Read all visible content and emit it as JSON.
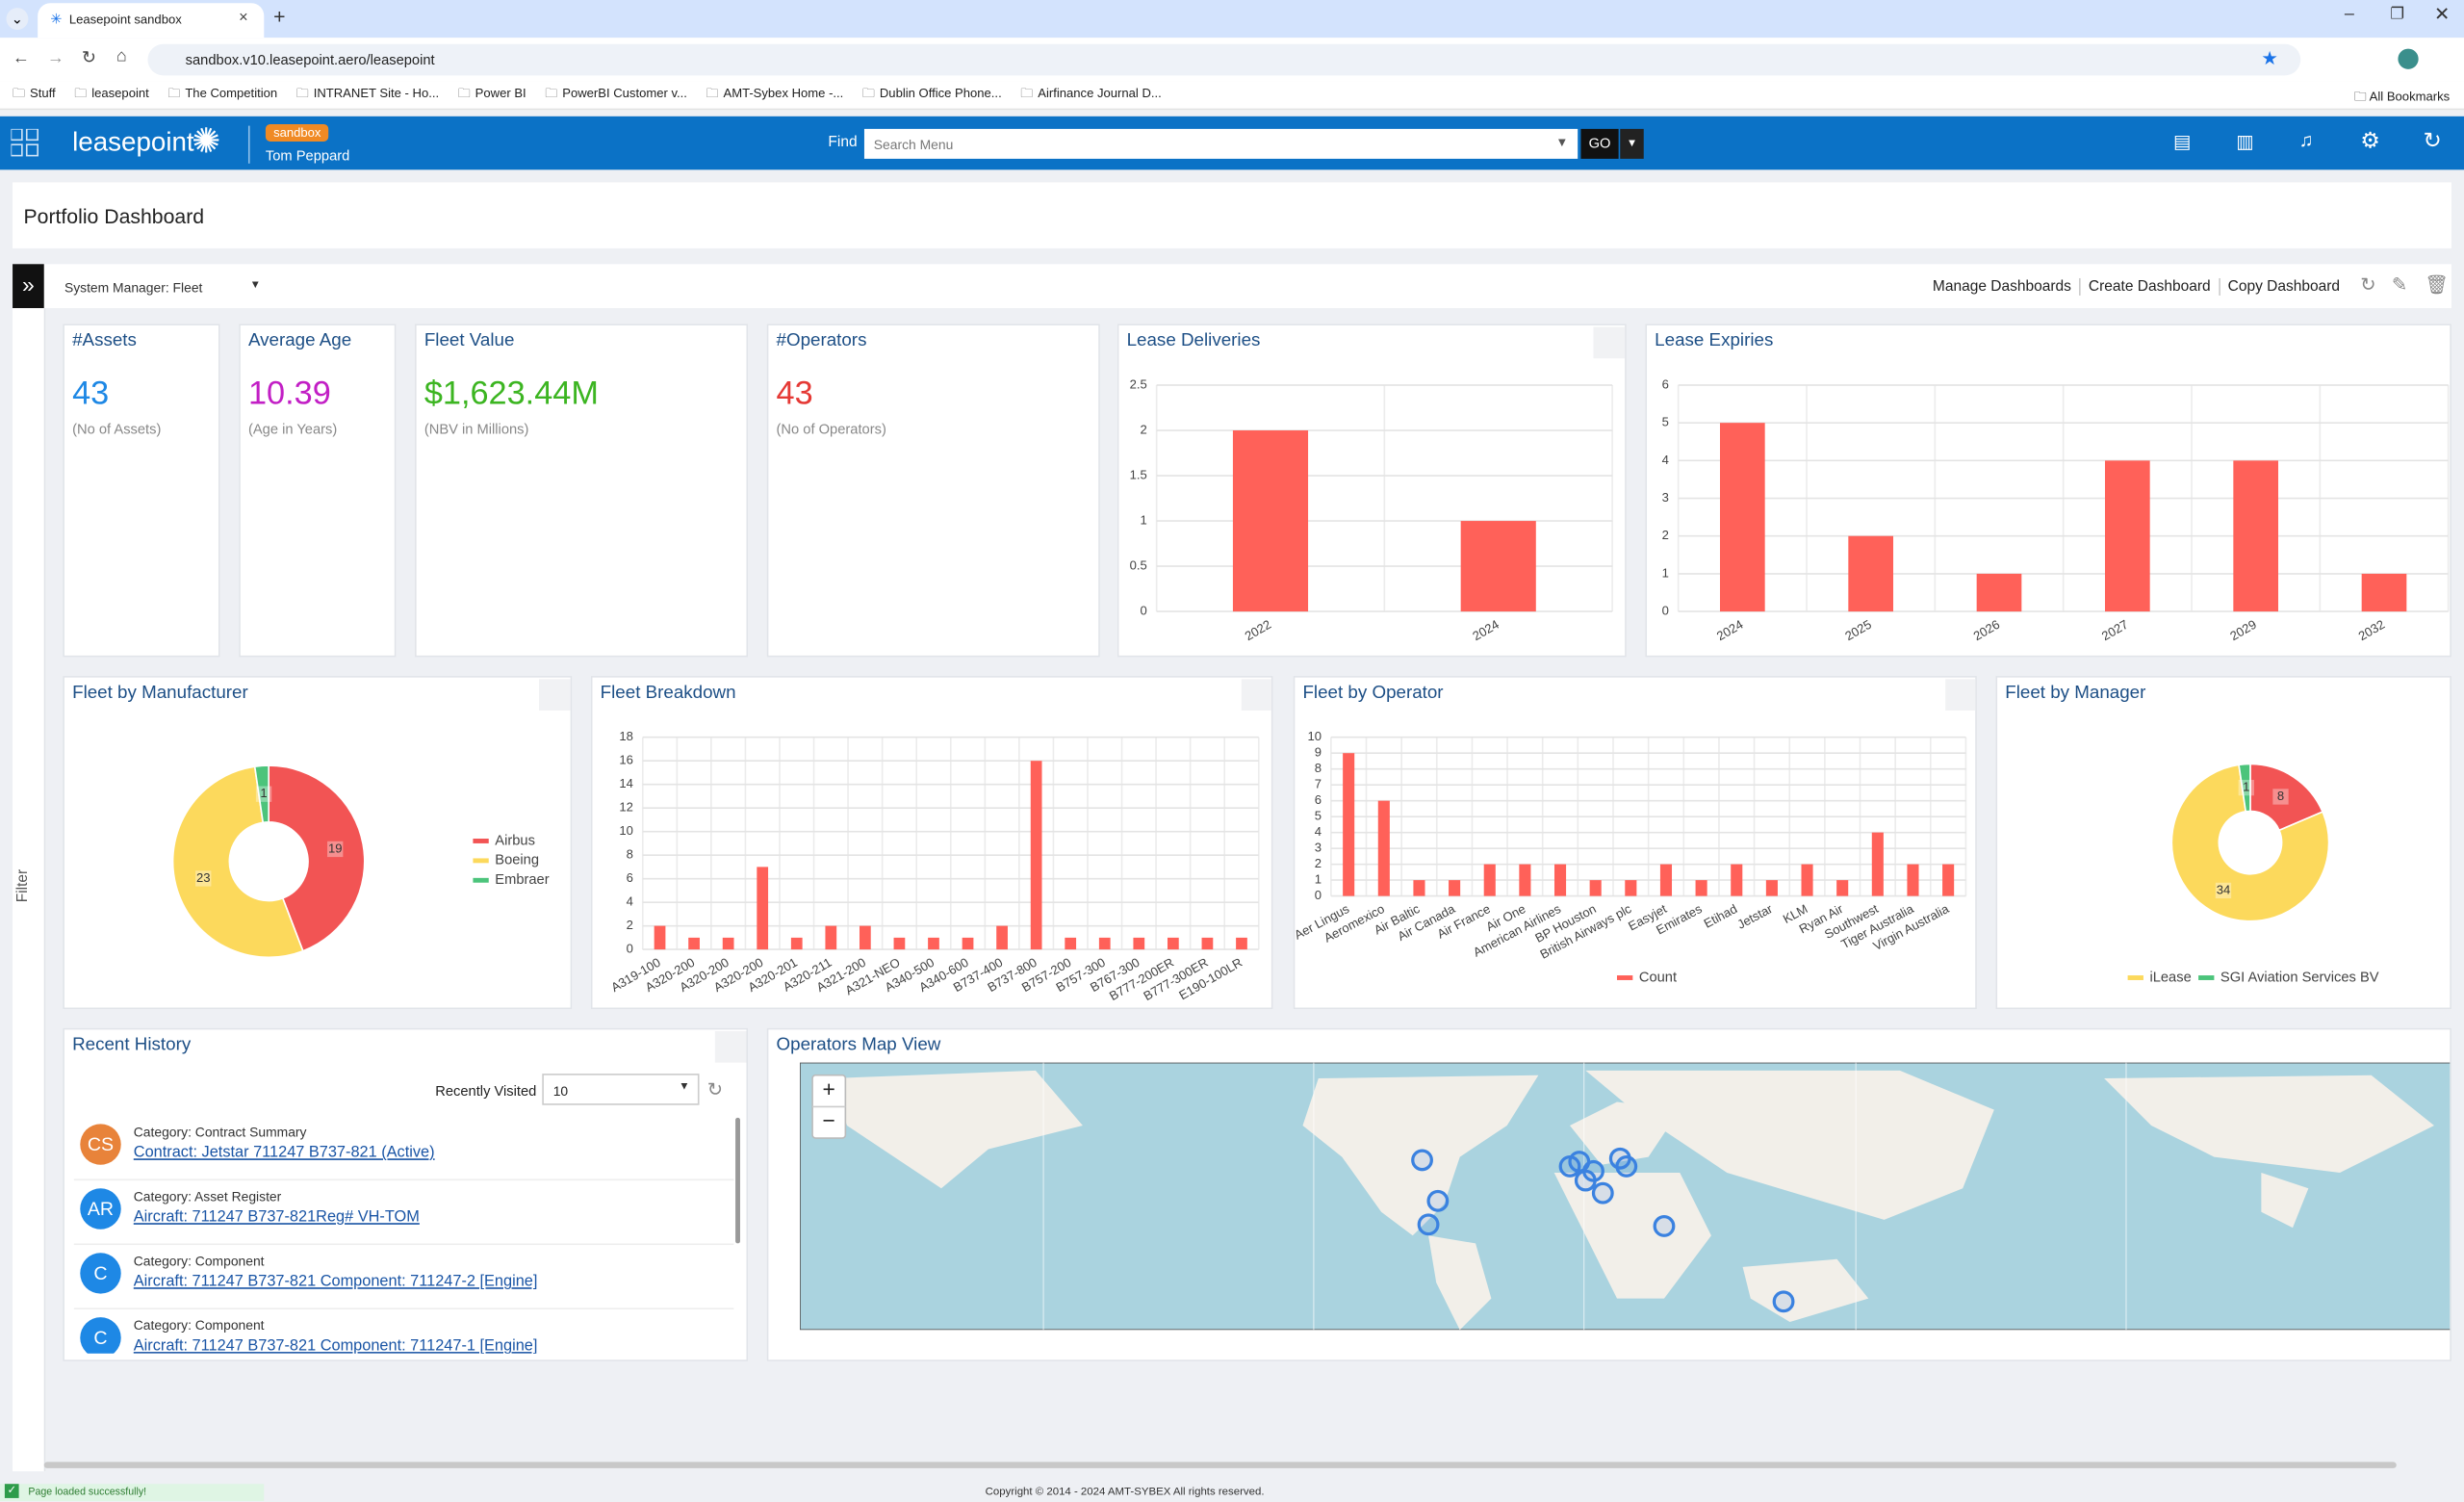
{
  "browser": {
    "tab_title": "Leasepoint sandbox",
    "url": "sandbox.v10.leasepoint.aero/leasepoint",
    "bookmarks": [
      "Stuff",
      "leasepoint",
      "The Competition",
      "INTRANET Site - Ho...",
      "Power BI",
      "PowerBI Customer v...",
      "AMT-Sybex Home -...",
      "Dublin Office Phone...",
      "Airfinance Journal D..."
    ],
    "all_bookmarks": "All Bookmarks"
  },
  "header": {
    "logo": "leasepoint",
    "environment": "sandbox",
    "user": "Tom Peppard",
    "find_label": "Find",
    "search_placeholder": "Search Menu",
    "go": "GO"
  },
  "page_title": "Portfolio Dashboard",
  "toolbar": {
    "dashboard": "System Manager: Fleet",
    "actions": [
      "Manage Dashboards",
      "Create Dashboard",
      "Copy Dashboard"
    ],
    "filter": "Filter"
  },
  "kpis": [
    {
      "title": "#Assets",
      "value": "43",
      "caption": "(No of Assets)",
      "color": "#1e88e5"
    },
    {
      "title": "Average Age",
      "value": "10.39",
      "caption": "(Age in Years)",
      "color": "#c21fc5"
    },
    {
      "title": "Fleet Value",
      "value": "$1,623.44M",
      "caption": "(NBV in Millions)",
      "color": "#3cb521"
    },
    {
      "title": "#Operators",
      "value": "43",
      "caption": "(No of Operators)",
      "color": "#e53935"
    }
  ],
  "lease_deliveries": {
    "type": "bar",
    "title": "Lease Deliveries",
    "categories": [
      "2022",
      "2024"
    ],
    "values": [
      2,
      1
    ],
    "color": "#ff6159",
    "ylim": [
      0,
      2.5
    ],
    "yticks": [
      0,
      0.5,
      1,
      1.5,
      2,
      2.5
    ],
    "grid": true
  },
  "lease_expiries": {
    "type": "bar",
    "title": "Lease Expiries",
    "categories": [
      "2024",
      "2025",
      "2026",
      "2027",
      "2029",
      "2032"
    ],
    "values": [
      5,
      2,
      1,
      4,
      4,
      1
    ],
    "color": "#ff6159",
    "ylim": [
      0,
      6
    ],
    "yticks": [
      0,
      1,
      2,
      3,
      4,
      5,
      6
    ],
    "grid": true
  },
  "fleet_by_manufacturer": {
    "type": "pie",
    "title": "Fleet by Manufacturer",
    "categories": [
      "Airbus",
      "Boeing",
      "Embraer"
    ],
    "values": [
      19,
      23,
      1
    ],
    "colors": [
      "#f25454",
      "#fcd95c",
      "#4cc47b"
    ],
    "legend": "right"
  },
  "fleet_breakdown": {
    "type": "bar",
    "title": "Fleet Breakdown",
    "categories": [
      "A319-100",
      "A320-200",
      "A320-200",
      "A320-200",
      "A320-201",
      "A320-211",
      "A321-200",
      "A321-NEO",
      "A340-500",
      "A340-600",
      "B737-400",
      "B737-800",
      "B757-200",
      "B757-300",
      "B767-300",
      "B777-200ER",
      "B777-300ER",
      "E190-100LR"
    ],
    "values": [
      2,
      1,
      1,
      7,
      1,
      2,
      2,
      1,
      1,
      1,
      2,
      16,
      1,
      1,
      1,
      1,
      1,
      1
    ],
    "color": "#ff6159",
    "ylim": [
      0,
      18
    ],
    "yticks": [
      0,
      2,
      4,
      6,
      8,
      10,
      12,
      14,
      16,
      18
    ],
    "grid": true
  },
  "fleet_by_operator": {
    "type": "bar",
    "title": "Fleet by Operator",
    "series_name": "Count",
    "categories": [
      "Aer Lingus",
      "Aeromexico",
      "Air Baltic",
      "Air Canada",
      "Air France",
      "Air One",
      "American Airlines",
      "BP Houston",
      "British Airways plc",
      "Easyjet",
      "Emirates",
      "Etihad",
      "Jetstar",
      "KLM",
      "Ryan Air",
      "Southwest",
      "Tiger Australia",
      "Virgin Australia"
    ],
    "values": [
      9,
      6,
      1,
      1,
      2,
      2,
      2,
      1,
      1,
      2,
      1,
      2,
      1,
      2,
      1,
      4,
      2,
      2
    ],
    "color": "#ff6159",
    "ylim": [
      0,
      10
    ],
    "yticks": [
      0,
      1,
      2,
      3,
      4,
      5,
      6,
      7,
      8,
      9,
      10
    ],
    "grid": true
  },
  "fleet_by_manager": {
    "type": "pie",
    "title": "Fleet by Manager",
    "categories": [
      null,
      "iLease",
      "SGI Aviation Services BV"
    ],
    "values": [
      8,
      34,
      1
    ],
    "colors": [
      "#f25454",
      "#fcd95c",
      "#4cc47b"
    ],
    "legend": "bottom"
  },
  "recent_history": {
    "title": "Recent History",
    "filter_label": "Recently Visited",
    "filter_value": "10",
    "items": [
      {
        "initials": "CS",
        "category": "Category: Contract Summary",
        "link": "Contract: Jetstar 711247 B737-821 (Active)",
        "color": "#e8833a"
      },
      {
        "initials": "AR",
        "category": "Category: Asset Register",
        "link": "Aircraft: 711247 B737-821Reg# VH-TOM",
        "color": "#1e88e5"
      },
      {
        "initials": "C",
        "category": "Category: Component",
        "link": "Aircraft: 711247 B737-821 Component: 711247-2 [Engine]",
        "color": "#1e88e5"
      },
      {
        "initials": "C",
        "category": "Category: Component",
        "link": "Aircraft: 711247 B737-821 Component: 711247-1 [Engine]",
        "color": "#1e88e5"
      }
    ]
  },
  "map": {
    "title": "Operators Map View"
  },
  "footer": "Copyright © 2014 - 2024 AMT-SYBEX All rights reserved.",
  "status": "Page loaded successfully!"
}
